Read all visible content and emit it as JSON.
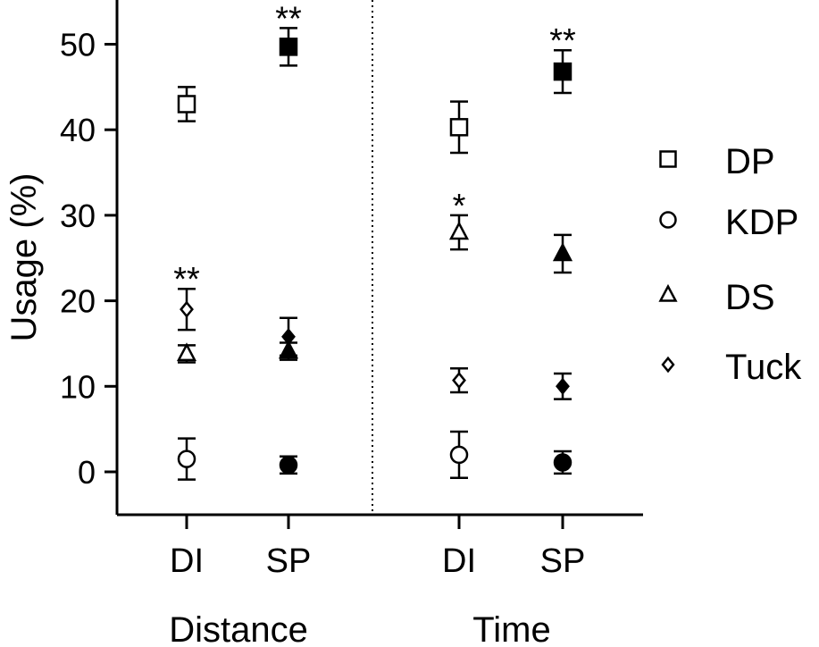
{
  "chart_data": {
    "type": "scatter",
    "ylabel": "Usage (%)",
    "ylim": [
      -5,
      55
    ],
    "yticks": [
      0,
      10,
      20,
      30,
      40,
      50
    ],
    "groups": [
      {
        "name": "Distance",
        "categories": [
          "DI",
          "SP"
        ]
      },
      {
        "name": "Time",
        "categories": [
          "DI",
          "SP"
        ]
      }
    ],
    "series": [
      {
        "name": "DP",
        "marker": "square",
        "values": [
          [
            43.0,
            49.7
          ],
          [
            40.3,
            46.8
          ]
        ],
        "errors": [
          [
            2.0,
            2.2
          ],
          [
            3.0,
            2.5
          ]
        ],
        "annotations": [
          [
            "",
            "**"
          ],
          [
            "",
            "**"
          ]
        ]
      },
      {
        "name": "KDP",
        "marker": "circle",
        "values": [
          [
            1.5,
            0.8
          ],
          [
            2.0,
            1.1
          ]
        ],
        "errors": [
          [
            2.4,
            1.0
          ],
          [
            2.7,
            1.3
          ]
        ],
        "annotations": [
          [
            "",
            ""
          ],
          [
            "",
            ""
          ]
        ]
      },
      {
        "name": "DS",
        "marker": "triangle",
        "values": [
          [
            13.8,
            14.1
          ],
          [
            28.0,
            25.5
          ]
        ],
        "errors": [
          [
            1.0,
            1.0
          ],
          [
            2.0,
            2.2
          ]
        ],
        "annotations": [
          [
            "",
            ""
          ],
          [
            "*",
            ""
          ]
        ]
      },
      {
        "name": "Tuck",
        "marker": "diamond",
        "values": [
          [
            19.0,
            15.8
          ],
          [
            10.7,
            10.0
          ]
        ],
        "errors": [
          [
            2.4,
            2.2
          ],
          [
            1.4,
            1.5
          ]
        ],
        "annotations": [
          [
            "**",
            ""
          ],
          [
            "",
            ""
          ]
        ]
      }
    ],
    "fill": {
      "DI": "open",
      "SP": "filled"
    },
    "legend": "right",
    "colors": {
      "marker": "#000000",
      "background": "#ffffff"
    }
  }
}
